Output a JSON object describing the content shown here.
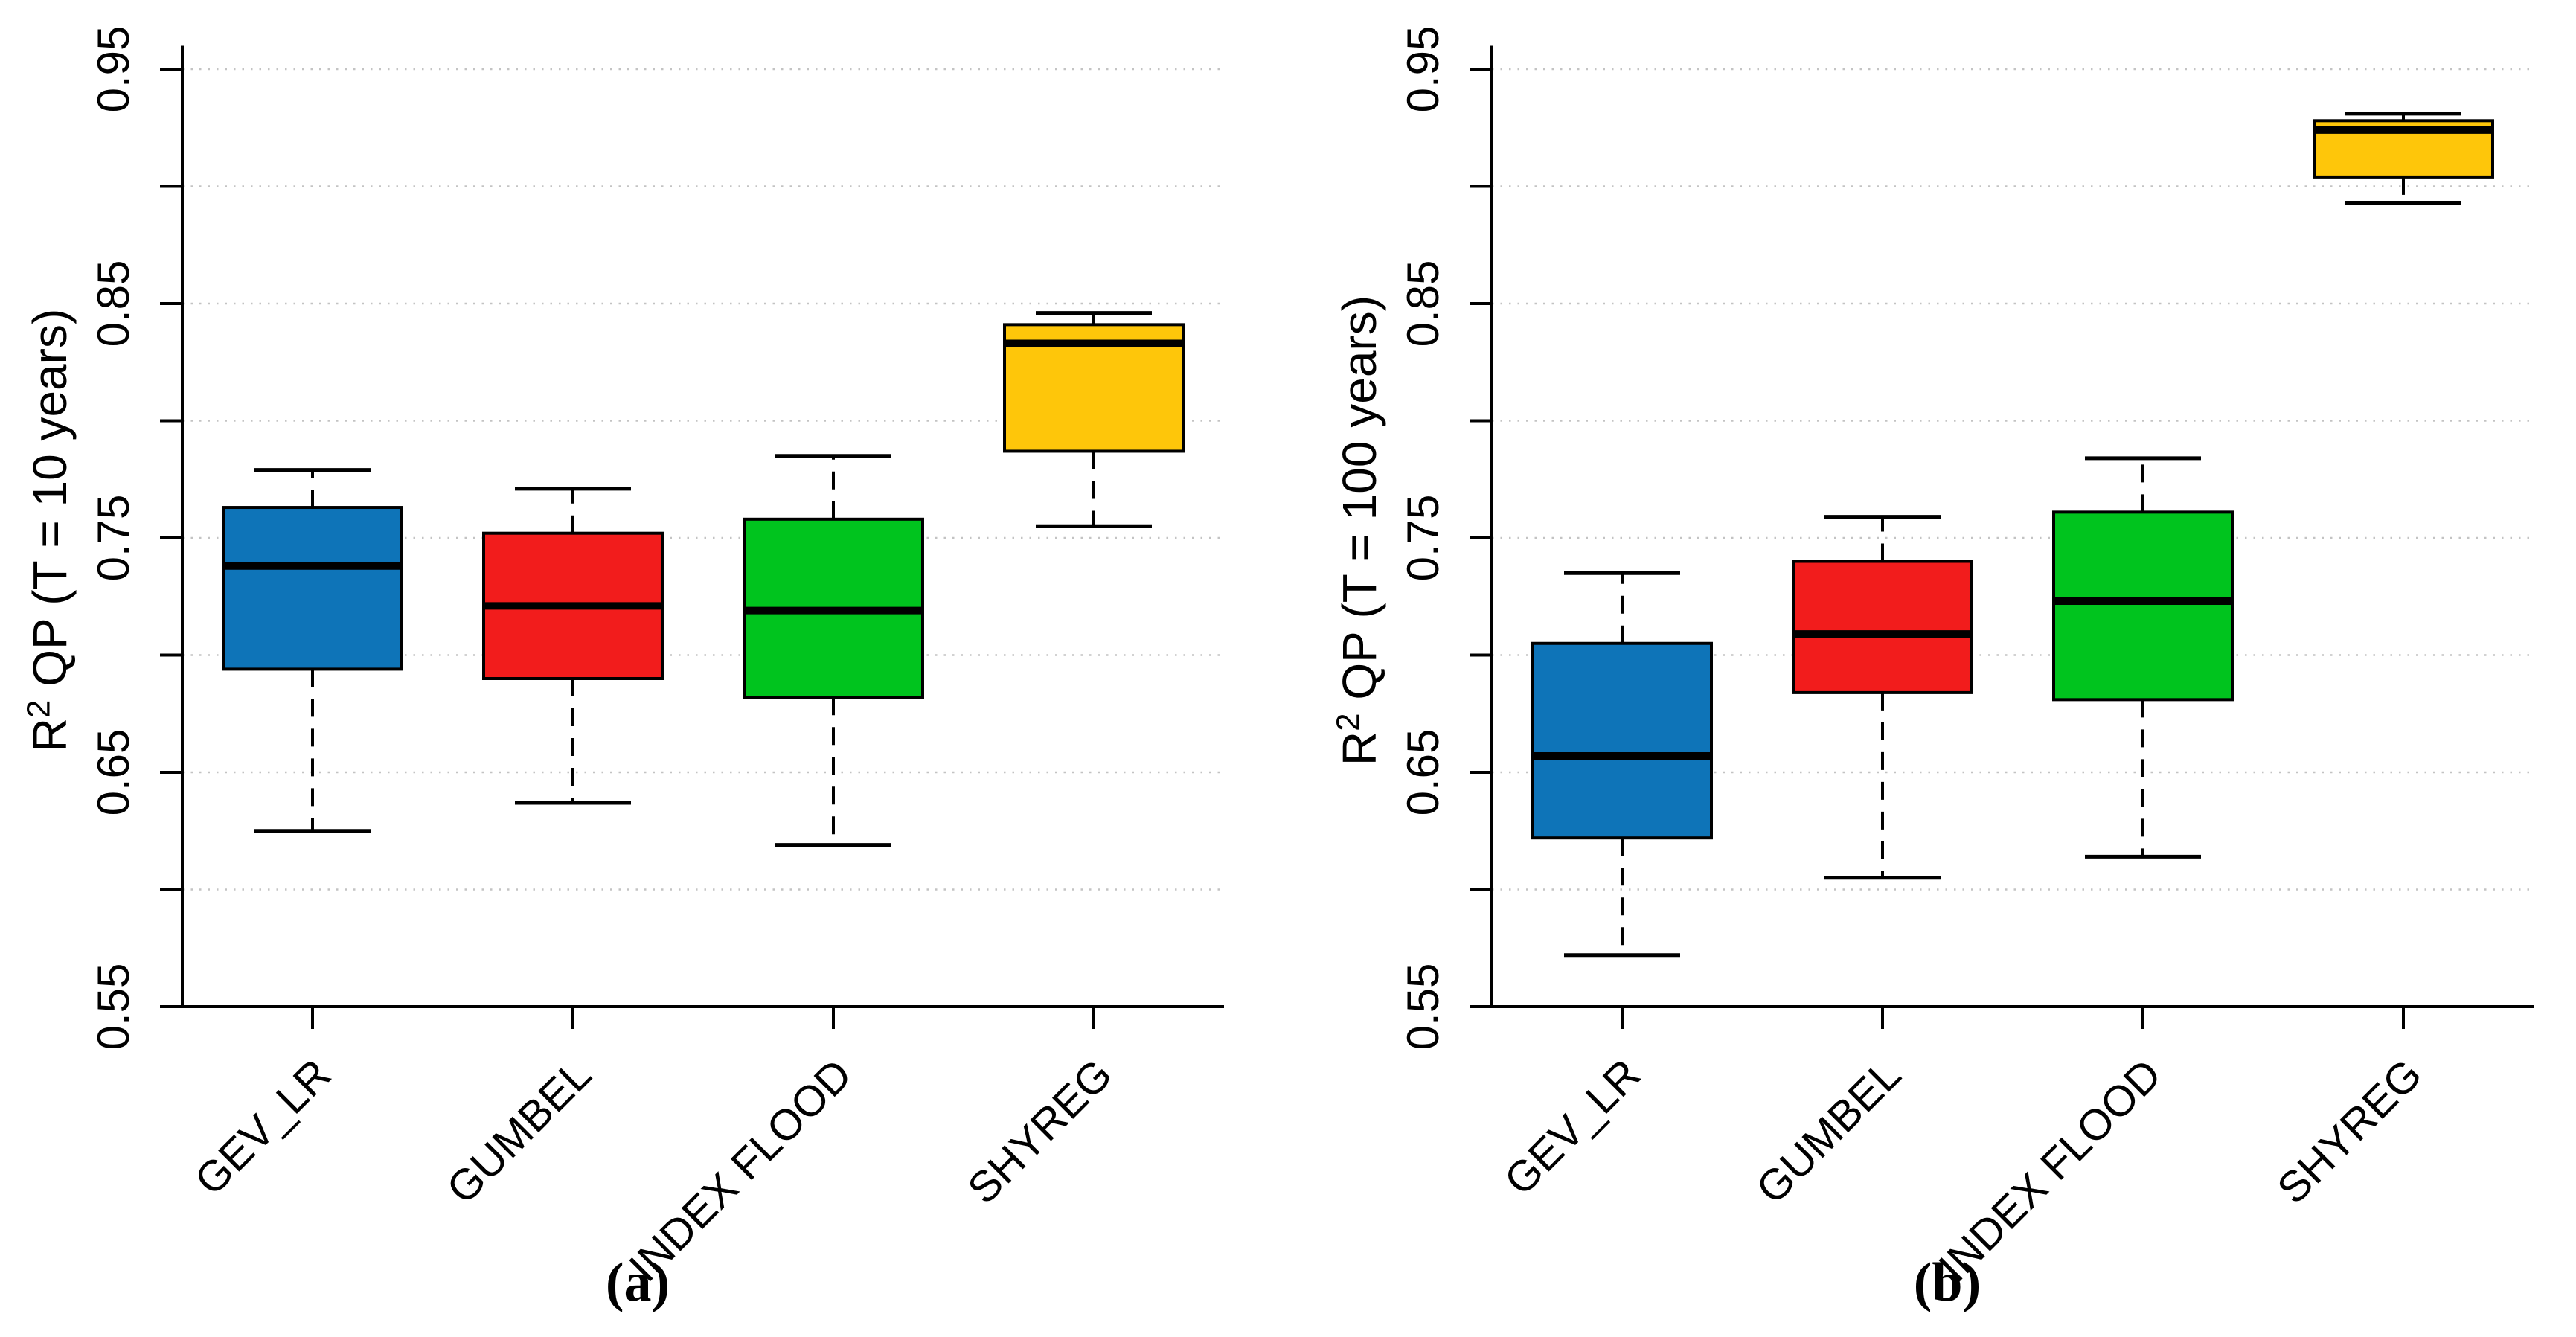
{
  "figure": {
    "background_color": "#ffffff",
    "axis_color": "#000000",
    "gridline_color": "#c3c3c3",
    "median_color": "#000000",
    "whisker_color": "#000000"
  },
  "chart_data": [
    {
      "type": "box",
      "panel_label": "(a)",
      "ylabel": "R² QP (T = 10 years)",
      "ylabel_parts": {
        "base": "R",
        "sup": "2",
        "rest": " QP (T = 10 years)"
      },
      "categories": [
        "GEV_LR",
        "GUMBEL",
        "INDEX FLOOD",
        "SHYREG"
      ],
      "colors": [
        "#0e74b8",
        "#f21c1c",
        "#00c41e",
        "#fec60a"
      ],
      "ylim": [
        0.55,
        0.96
      ],
      "grid": "horizontal dotted every 0.05",
      "legend": "none",
      "yticks": [
        0.55,
        0.6,
        0.65,
        0.7,
        0.75,
        0.8,
        0.85,
        0.9,
        0.95
      ],
      "ytick_labels": [
        {
          "v": 0.55,
          "label": "0.55"
        },
        {
          "v": 0.65,
          "label": "0.65"
        },
        {
          "v": 0.75,
          "label": "0.75"
        },
        {
          "v": 0.85,
          "label": "0.85"
        },
        {
          "v": 0.95,
          "label": "0.95"
        }
      ],
      "series": [
        {
          "name": "GEV_LR",
          "min": 0.625,
          "q1": 0.694,
          "median": 0.738,
          "q3": 0.763,
          "max": 0.779
        },
        {
          "name": "GUMBEL",
          "min": 0.637,
          "q1": 0.69,
          "median": 0.721,
          "q3": 0.752,
          "max": 0.771
        },
        {
          "name": "INDEX FLOOD",
          "min": 0.619,
          "q1": 0.682,
          "median": 0.719,
          "q3": 0.758,
          "max": 0.785
        },
        {
          "name": "SHYREG",
          "min": 0.755,
          "q1": 0.787,
          "median": 0.833,
          "q3": 0.841,
          "max": 0.846
        }
      ]
    },
    {
      "type": "box",
      "panel_label": "(b)",
      "ylabel": "R² QP (T = 100 years)",
      "ylabel_parts": {
        "base": "R",
        "sup": "2",
        "rest": " QP (T = 100 years)"
      },
      "categories": [
        "GEV_LR",
        "GUMBEL",
        "INDEX FLOOD",
        "SHYREG"
      ],
      "colors": [
        "#0e74b8",
        "#f21c1c",
        "#00c41e",
        "#fec60a"
      ],
      "ylim": [
        0.55,
        0.96
      ],
      "grid": "horizontal dotted every 0.05",
      "legend": "none",
      "yticks": [
        0.55,
        0.6,
        0.65,
        0.7,
        0.75,
        0.8,
        0.85,
        0.9,
        0.95
      ],
      "ytick_labels": [
        {
          "v": 0.55,
          "label": "0.55"
        },
        {
          "v": 0.65,
          "label": "0.65"
        },
        {
          "v": 0.75,
          "label": "0.75"
        },
        {
          "v": 0.85,
          "label": "0.85"
        },
        {
          "v": 0.95,
          "label": "0.95"
        }
      ],
      "series": [
        {
          "name": "GEV_LR",
          "min": 0.572,
          "q1": 0.622,
          "median": 0.657,
          "q3": 0.705,
          "max": 0.735
        },
        {
          "name": "GUMBEL",
          "min": 0.605,
          "q1": 0.684,
          "median": 0.709,
          "q3": 0.74,
          "max": 0.759
        },
        {
          "name": "INDEX FLOOD",
          "min": 0.614,
          "q1": 0.681,
          "median": 0.723,
          "q3": 0.761,
          "max": 0.784
        },
        {
          "name": "SHYREG",
          "min": 0.893,
          "q1": 0.904,
          "median": 0.924,
          "q3": 0.928,
          "max": 0.931
        }
      ]
    }
  ]
}
